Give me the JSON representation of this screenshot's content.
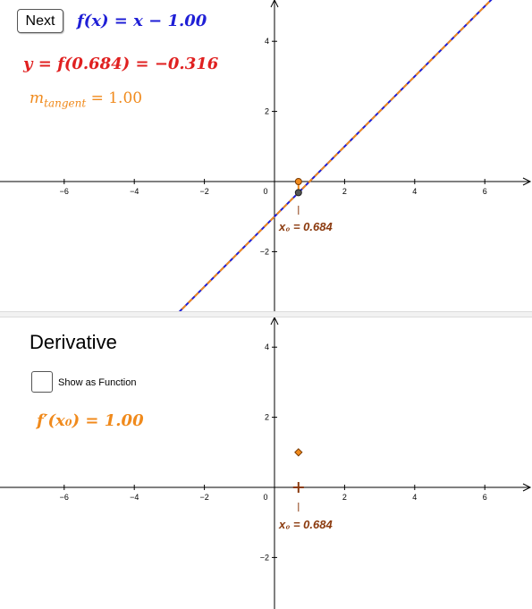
{
  "graph_top": {
    "next_button": "Next",
    "function_label": "f(x) = x − 1.00",
    "y_label": "y = f(0.684) = −0.316",
    "tangent_slope_label": "m",
    "tangent_subscript": "tangent",
    "tangent_value": " = 1.00",
    "x0_label": "x₀ = 0.684",
    "x_ticks": [
      "−6",
      "−4",
      "−2",
      "0",
      "2",
      "4",
      "6"
    ],
    "y_ticks": [
      "4",
      "2",
      "−2"
    ]
  },
  "graph_bottom": {
    "heading": "Derivative",
    "show_function_label": "Show as Function",
    "derivative_label": "f′(x₀) = 1.00",
    "x0_label": "x₀ = 0.684",
    "x_ticks": [
      "−6",
      "−4",
      "−2",
      "0",
      "2",
      "4",
      "6"
    ],
    "y_ticks": [
      "4",
      "2",
      "−2"
    ]
  },
  "math": {
    "x0": 0.684,
    "slope": 1.0,
    "intercept": -1.0,
    "f_at_x0": -0.316,
    "derivative_at_x0": 1.0
  },
  "colors": {
    "function": "#1f1fd6",
    "value": "#e02020",
    "tangent": "#f08a1c",
    "point_label": "#8b3a0e"
  }
}
